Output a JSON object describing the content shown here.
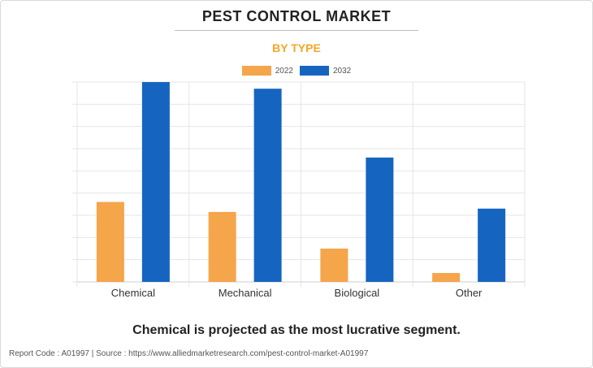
{
  "header": {
    "title": "PEST CONTROL MARKET",
    "subtitle": "BY TYPE"
  },
  "legend": [
    {
      "label": "2022",
      "color": "#f5a54a"
    },
    {
      "label": "2032",
      "color": "#1565c0"
    }
  ],
  "chart_data": {
    "type": "bar",
    "title": "PEST CONTROL MARKET",
    "subtitle": "BY TYPE",
    "categories": [
      "Chemical",
      "Mechanical",
      "Biological",
      "Other"
    ],
    "series": [
      {
        "name": "2022",
        "color": "#f5a54a",
        "values": [
          36,
          31.5,
          15,
          4
        ]
      },
      {
        "name": "2032",
        "color": "#1565c0",
        "values": [
          90,
          87,
          56,
          33
        ]
      }
    ],
    "xlabel": "",
    "ylabel": "",
    "ylim": [
      0,
      90
    ],
    "y_ticks_shown": false,
    "grid": true,
    "legend_position": "top-center"
  },
  "caption": "Chemical is projected as the most lucrative segment.",
  "footer": "Report Code : A01997  |  Source : https://www.alliedmarketresearch.com/pest-control-market-A01997"
}
